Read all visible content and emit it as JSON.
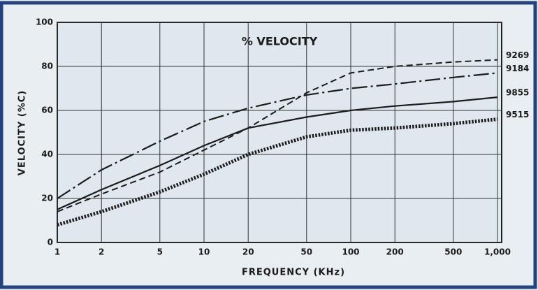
{
  "chart_data": {
    "type": "line",
    "title": "% VELOCITY",
    "x_label": "FREQUENCY (KHz)",
    "y_label": "VELOCITY (%C)",
    "log_x": true,
    "grid": true,
    "x": [
      1,
      2,
      5,
      10,
      20,
      50,
      100,
      200,
      500,
      1000
    ],
    "xlim": [
      1,
      1000
    ],
    "xticks": [
      1,
      2,
      5,
      10,
      20,
      50,
      100,
      200,
      500,
      {
        "value": 1000,
        "label": "1,000"
      }
    ],
    "ylim": [
      0,
      100
    ],
    "yticks": [
      0,
      20,
      40,
      60,
      80,
      100
    ],
    "series": [
      {
        "name": "9269",
        "color": "#1c1c1c",
        "style": "dashed",
        "values": [
          14,
          22,
          32,
          42,
          52,
          68,
          77,
          80,
          82,
          83
        ]
      },
      {
        "name": "9184",
        "color": "#1c1c1c",
        "style": "dashdot",
        "values": [
          20,
          33,
          46,
          55,
          61,
          67,
          70,
          72,
          75,
          77
        ]
      },
      {
        "name": "9855",
        "color": "#1c1c1c",
        "style": "solid",
        "values": [
          15,
          24,
          35,
          44,
          52,
          57,
          60,
          62,
          64,
          66
        ]
      },
      {
        "name": "9515",
        "color": "#1c1c1c",
        "style": "dotted",
        "values": [
          8,
          14,
          23,
          31,
          40,
          48,
          51,
          52,
          54,
          56
        ]
      }
    ]
  }
}
